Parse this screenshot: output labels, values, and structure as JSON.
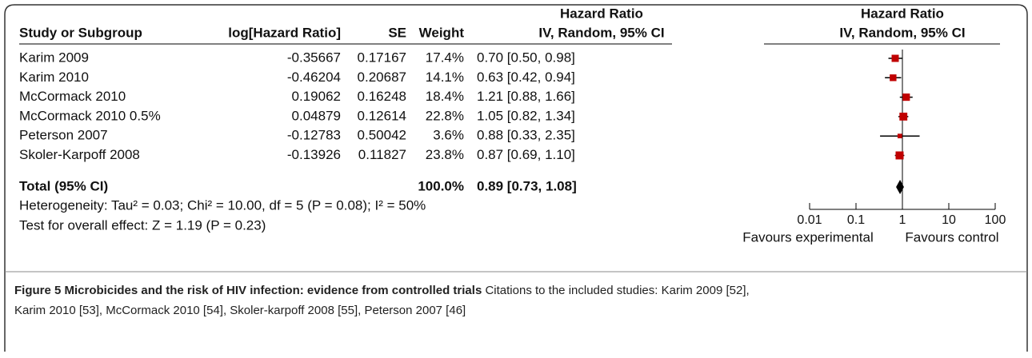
{
  "chart_data": {
    "type": "forest",
    "header_top": "Hazard Ratio",
    "header_right_top": "Hazard Ratio",
    "columns": [
      "Study or Subgroup",
      "log[Hazard Ratio]",
      "SE",
      "Weight",
      "IV, Random, 95% CI"
    ],
    "plot_header": "IV, Random, 95% CI",
    "studies": [
      {
        "name": "Karim 2009",
        "log_hr": -0.35667,
        "se": 0.17167,
        "weight": 17.4,
        "weight_label": "17.4%",
        "hr": 0.7,
        "lower": 0.5,
        "upper": 0.98,
        "ci_label": "0.70 [0.50, 0.98]"
      },
      {
        "name": "Karim 2010",
        "log_hr": -0.46204,
        "se": 0.20687,
        "weight": 14.1,
        "weight_label": "14.1%",
        "hr": 0.63,
        "lower": 0.42,
        "upper": 0.94,
        "ci_label": "0.63 [0.42, 0.94]"
      },
      {
        "name": "McCormack 2010",
        "log_hr": 0.19062,
        "se": 0.16248,
        "weight": 18.4,
        "weight_label": "18.4%",
        "hr": 1.21,
        "lower": 0.88,
        "upper": 1.66,
        "ci_label": "1.21 [0.88, 1.66]"
      },
      {
        "name": "McCormack 2010 0.5%",
        "log_hr": 0.04879,
        "se": 0.12614,
        "weight": 22.8,
        "weight_label": "22.8%",
        "hr": 1.05,
        "lower": 0.82,
        "upper": 1.34,
        "ci_label": "1.05 [0.82, 1.34]"
      },
      {
        "name": "Peterson 2007",
        "log_hr": -0.12783,
        "se": 0.50042,
        "weight": 3.6,
        "weight_label": "3.6%",
        "hr": 0.88,
        "lower": 0.33,
        "upper": 2.35,
        "ci_label": "0.88 [0.33, 2.35]"
      },
      {
        "name": "Skoler-Karpoff 2008",
        "log_hr": -0.13926,
        "se": 0.11827,
        "weight": 23.8,
        "weight_label": "23.8%",
        "hr": 0.87,
        "lower": 0.69,
        "upper": 1.1,
        "ci_label": "0.87 [0.69, 1.10]"
      }
    ],
    "total": {
      "name": "Total (95% CI)",
      "weight": 100,
      "weight_label": "100.0%",
      "hr": 0.89,
      "lower": 0.73,
      "upper": 1.08,
      "ci_label": "0.89 [0.73, 1.08]"
    },
    "heterogeneity": "Heterogeneity: Tau² = 0.03; Chi² = 10.00, df = 5 (P = 0.08); I² = 50%",
    "overall_test": "Test for overall effect: Z = 1.19 (P = 0.23)",
    "xlim": [
      0.01,
      100
    ],
    "xticks": [
      0.01,
      0.1,
      1,
      10,
      100
    ],
    "log_scale": true,
    "left_label": "Favours experimental",
    "right_label": "Favours control",
    "square_color": "#c00000",
    "caption_title": "Figure 5 Microbicides and the risk of HIV infection: evidence from controlled trials",
    "caption_line1": "Citations to the included studies: Karim 2009 [52],",
    "caption_line2": "Karim 2010 [53], McCormack 2010 [54], Skoler-karpoff 2008 [55], Peterson 2007 [46]"
  }
}
